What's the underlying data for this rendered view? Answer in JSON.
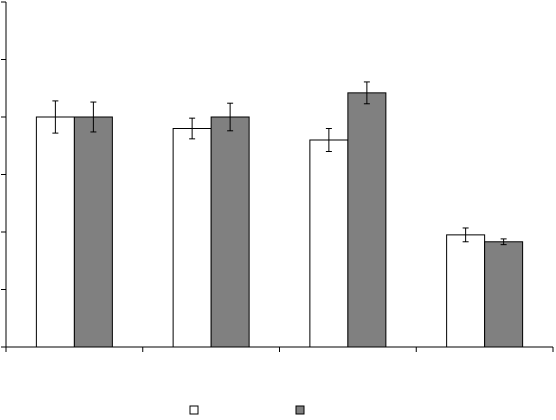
{
  "chart_data": {
    "type": "bar",
    "title": "",
    "xlabel": "",
    "ylabel": "",
    "ylim": [
      0,
      6
    ],
    "y_ticks": [
      0,
      1,
      2,
      3,
      4,
      5,
      6
    ],
    "grid": false,
    "legend_position": "bottom-center",
    "categories": [
      "",
      "",
      "",
      ""
    ],
    "series": [
      {
        "fill": "#ffffff",
        "values": [
          4.0,
          3.8,
          3.6,
          1.95
        ],
        "errors": [
          0.28,
          0.18,
          0.2,
          0.12
        ]
      },
      {
        "fill": "#808080",
        "values": [
          4.0,
          4.0,
          4.42,
          1.83
        ],
        "errors": [
          0.26,
          0.24,
          0.19,
          0.05
        ]
      }
    ]
  }
}
